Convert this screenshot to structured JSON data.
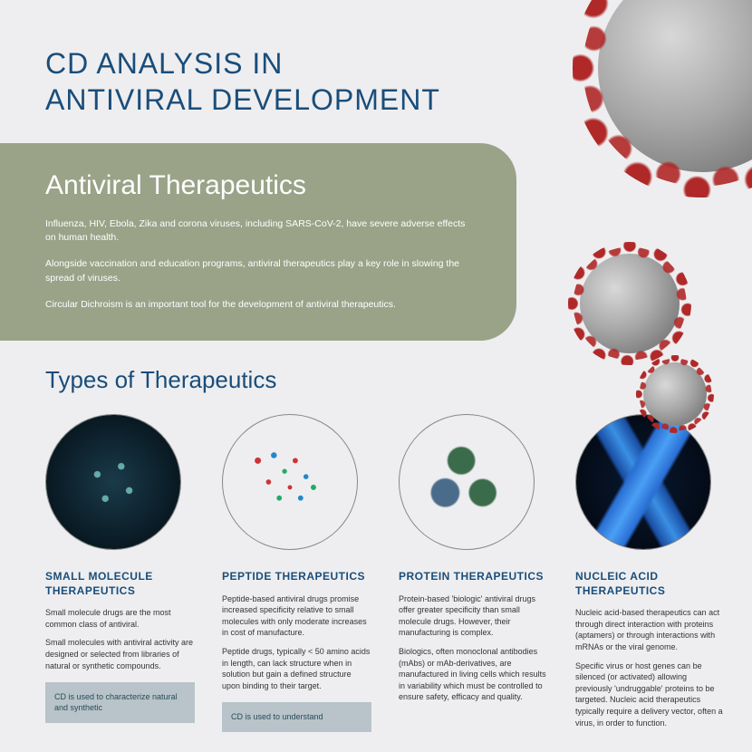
{
  "title_line1": "CD ANALYSIS IN",
  "title_line2": "ANTIVIRAL DEVELOPMENT",
  "intro": {
    "heading": "Antiviral Therapeutics",
    "p1": "Influenza, HIV, Ebola, Zika and corona viruses, including SARS-CoV-2, have severe adverse effects on human health.",
    "p2": "Alongside vaccination and education programs, antiviral therapeutics play a key role in slowing the spread of viruses.",
    "p3": "Circular Dichroism is an important tool for the development of antiviral therapeutics."
  },
  "section_heading": "Types of Therapeutics",
  "cards": {
    "small_molecule": {
      "title": "SMALL MOLECULE THERAPEUTICS",
      "p1": "Small molecule drugs are the most common class of antiviral.",
      "p2": "Small molecules with antiviral activity are designed or selected from libraries of natural or synthetic compounds.",
      "callout": "CD is used to characterize natural and synthetic"
    },
    "peptide": {
      "title": "PEPTIDE THERAPEUTICS",
      "p1": "Peptide-based antiviral drugs promise increased specificity relative to small molecules with only moderate increases in cost of manufacture.",
      "p2": "Peptide drugs, typically < 50 amino acids in length, can lack structure when in solution but gain a defined structure upon binding to their target.",
      "callout": "CD is used to understand"
    },
    "protein": {
      "title": "PROTEIN THERAPEUTICS",
      "p1": "Protein-based 'biologic' antiviral drugs offer greater specificity than small molecule drugs.  However, their manufacturing is complex.",
      "p2": "Biologics, often monoclonal antibodies (mAbs) or mAb-derivatives, are manufactured in living cells which results in variability which must be controlled to ensure safety, efficacy and quality."
    },
    "nucleic": {
      "title": "NUCLEIC ACID THERAPEUTICS",
      "p1": "Nucleic acid-based therapeutics can act through direct interaction with proteins (aptamers) or through interactions with mRNAs or the viral genome.",
      "p2": "Specific virus or host genes can be silenced (or activated) allowing previously 'undruggable' proteins to be targeted. Nucleic acid therapeutics typically require a delivery vector, often a virus, in order to function."
    }
  },
  "colors": {
    "title": "#1a4d7a",
    "panel_bg": "#9aa288",
    "page_bg": "#eeeef0",
    "callout_bg": "#b8c4c9",
    "virus_spike": "#b02828"
  }
}
